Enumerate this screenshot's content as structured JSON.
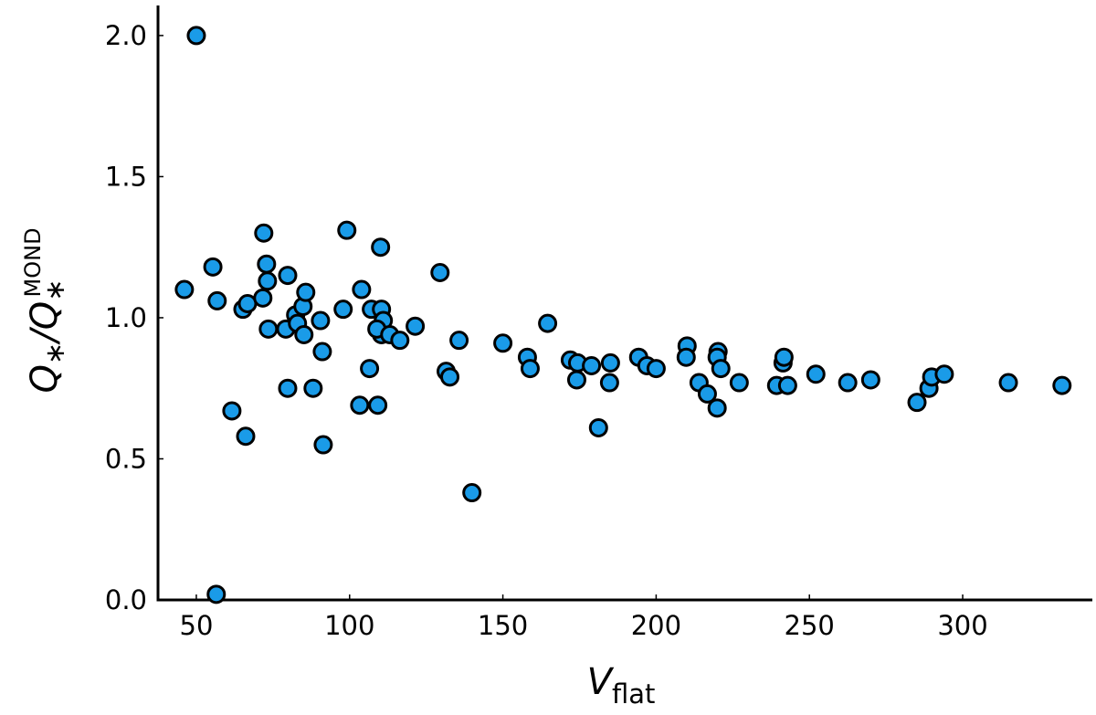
{
  "chart_data": {
    "type": "scatter",
    "x_label": {
      "main": "V",
      "sub": "flat"
    },
    "y_label": {
      "main": "Q",
      "sub": "∗",
      "sep": "/Q",
      "sub2": "∗",
      "sup": "MOND"
    },
    "color": "#1a9be8",
    "xlim": [
      37.5,
      342
    ],
    "ylim": [
      0,
      2.1
    ],
    "xticks": [
      50,
      100,
      150,
      200,
      250,
      300
    ],
    "yticks": [
      {
        "value": 0,
        "label": "0.0"
      },
      {
        "value": 0.5,
        "label": "0.5"
      },
      {
        "value": 1,
        "label": "1.0"
      },
      {
        "value": 1.5,
        "label": "1.5"
      },
      {
        "value": 2,
        "label": "2.0"
      }
    ],
    "grid": false,
    "x": [
      50,
      46.1,
      55.4,
      56.8,
      56.5,
      61.6,
      66.1,
      65.2,
      66.7,
      72.0,
      72.9,
      73.2,
      71.7,
      73.5,
      79.2,
      79.8,
      79.8,
      82.4,
      83.0,
      84.8,
      85.7,
      85.1,
      88.1,
      90.5,
      91.1,
      91.4,
      99.1,
      97.9,
      103.9,
      103.3,
      107.1,
      106.5,
      109.2,
      110.1,
      110.4,
      110.4,
      111.0,
      108.9,
      113.1,
      116.4,
      121.4,
      129.5,
      131.5,
      132.7,
      135.7,
      139.9,
      150.0,
      158.0,
      158.9,
      164.6,
      172.0,
      174.4,
      174.1,
      178.9,
      181.2,
      185.1,
      184.8,
      194.3,
      197.0,
      200.0,
      210.1,
      209.8,
      214.0,
      216.7,
      219.9,
      220.2,
      219.9,
      221.1,
      227.1,
      239.3,
      241.4,
      241.7,
      242.9,
      252.1,
      262.5,
      270.0,
      285.1,
      289.0,
      289.9,
      294.0,
      314.9,
      332.4
    ],
    "values": [
      2.0,
      1.1,
      1.18,
      1.06,
      0.02,
      0.67,
      0.58,
      1.03,
      1.05,
      1.3,
      1.19,
      1.13,
      1.07,
      0.96,
      0.96,
      1.15,
      0.75,
      1.01,
      0.98,
      1.04,
      1.09,
      0.94,
      0.75,
      0.99,
      0.88,
      0.55,
      1.31,
      1.03,
      1.1,
      0.69,
      1.03,
      0.82,
      0.69,
      1.25,
      1.03,
      0.94,
      0.99,
      0.96,
      0.94,
      0.92,
      0.97,
      1.16,
      0.81,
      0.79,
      0.92,
      0.38,
      0.91,
      0.86,
      0.82,
      0.98,
      0.85,
      0.84,
      0.78,
      0.83,
      0.61,
      0.84,
      0.77,
      0.86,
      0.83,
      0.82,
      0.9,
      0.86,
      0.77,
      0.73,
      0.68,
      0.88,
      0.86,
      0.82,
      0.77,
      0.76,
      0.84,
      0.86,
      0.76,
      0.8,
      0.77,
      0.78,
      0.7,
      0.75,
      0.79,
      0.8,
      0.77,
      0.76
    ]
  }
}
